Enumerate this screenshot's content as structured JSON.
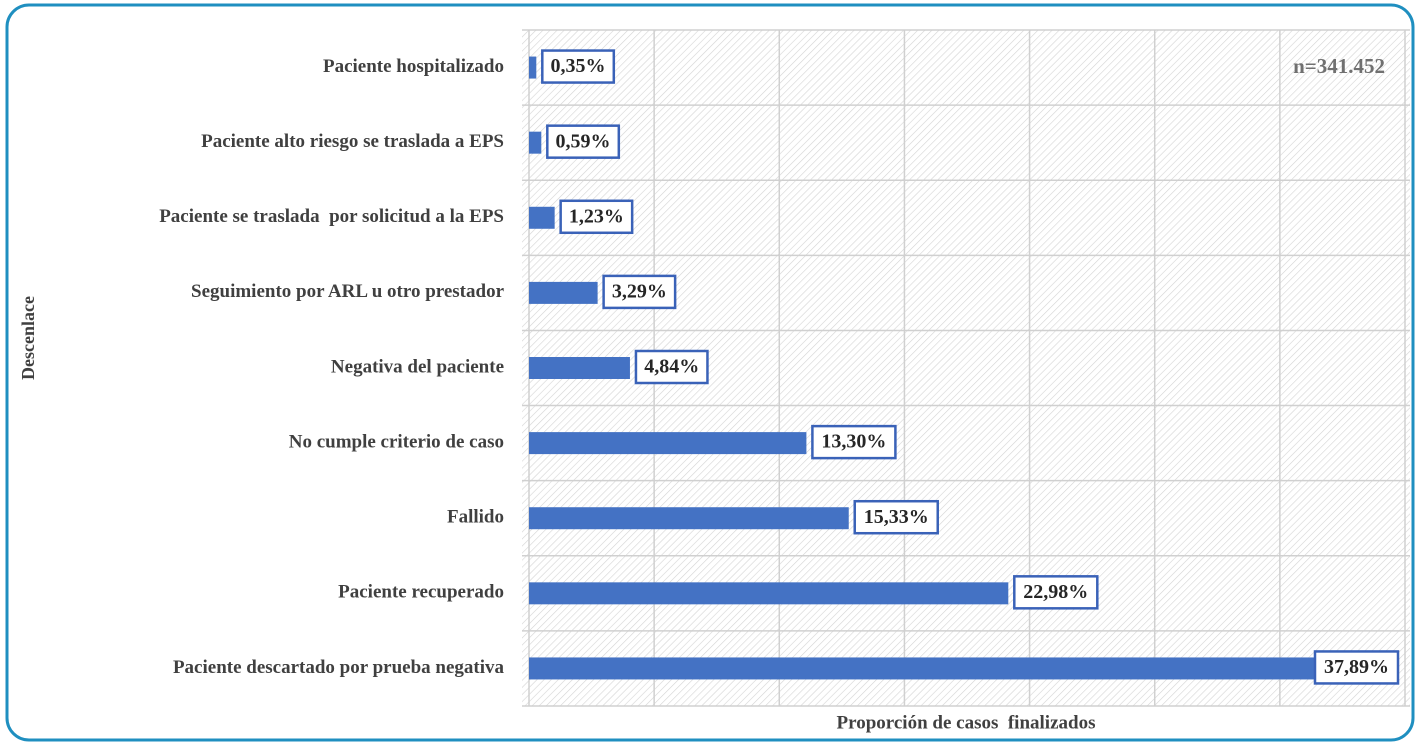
{
  "chart_data": {
    "type": "hbar",
    "y_label": "Descenlace",
    "x_label": "Proporción de casos  finalizados",
    "annotation": "n=341.452",
    "categories": [
      "Paciente hospitalizado",
      "Paciente alto riesgo se traslada a EPS",
      "Paciente se traslada  por solicitud a la EPS",
      "Seguimiento por ARL u otro prestador",
      "Negativa del paciente",
      "No cumple criterio de caso",
      "Fallido",
      "Paciente recuperado",
      "Paciente descartado por prueba negativa"
    ],
    "values": [
      0.35,
      0.59,
      1.23,
      3.29,
      4.84,
      13.3,
      15.33,
      22.98,
      37.89
    ],
    "value_labels": [
      "0,35%",
      "0,59%",
      "1,23%",
      "3,29%",
      "4,84%",
      "13,30%",
      "15,33%",
      "22,98%",
      "37,89%"
    ],
    "color": "#4472c4",
    "xlim": [
      0,
      42
    ]
  }
}
